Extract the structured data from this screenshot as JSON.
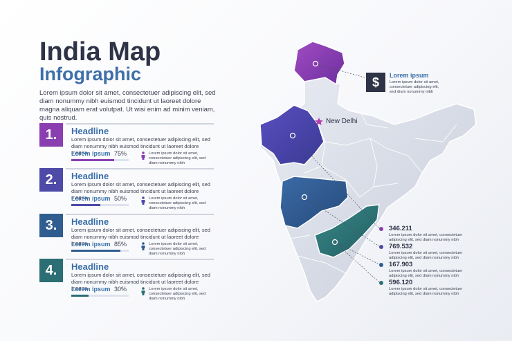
{
  "header": {
    "title": "India Map",
    "subtitle": "Infographic",
    "intro": "Lorem ipsum dolor sit amet, consectetuer adipiscing elit, sed diam nonummy nibh euismod tincidunt ut laoreet dolore magna aliquam erat volutpat. Ut wisi enim ad minim veniam, quis nostrud."
  },
  "items": [
    {
      "number": "1.",
      "headline": "Headline",
      "text": "Lorem ipsum dolor sit amet, consectetuer adipiscing elit, sed diam nonummy nibh euismod tincidunt ut laoreet dolore magna.",
      "label": "Lorem ipsum",
      "percent": "75%",
      "progress": 0.75,
      "small": "Lorem ipsum dolor sit amet, consectetuer adipiscing elit, sed diam nonummy nibh",
      "color": "#8a3fb0"
    },
    {
      "number": "2.",
      "headline": "Headline",
      "text": "Lorem ipsum dolor sit amet, consectetuer adipiscing elit, sed diam nonummy nibh euismod tincidunt ut laoreet dolore magna.",
      "label": "Lorem ipsum",
      "percent": "50%",
      "progress": 0.5,
      "small": "Lorem ipsum dolor sit amet, consectetuer adipiscing elit, sed diam nonummy nibh",
      "color": "#4d4aa8"
    },
    {
      "number": "3.",
      "headline": "Headline",
      "text": "Lorem ipsum dolor sit amet, consectetuer adipiscing elit, sed diam nonummy nibh euismod tincidunt ut laoreet dolore magna.",
      "label": "Lorem ipsum",
      "percent": "85%",
      "progress": 0.85,
      "small": "Lorem ipsum dolor sit amet, consectetuer adipiscing elit, sed diam nonummy nibh",
      "color": "#2f5d8f"
    },
    {
      "number": "4.",
      "headline": "Headline",
      "text": "Lorem ipsum dolor sit amet, consectetuer adipiscing elit, sed diam nonummy nibh euismod tincidunt ut laoreet dolore magna.",
      "label": "Lorem ipsum",
      "percent": "30%",
      "progress": 0.3,
      "small": "Lorem ipsum dolor sit amet, consectetuer adipiscing elit, sed diam nonummy nibh",
      "color": "#2b6e74"
    }
  ],
  "legend": {
    "icon": "dollar-icon",
    "symbol": "$",
    "title": "Lorem ipsum",
    "text": "Lorem ipsum dolor sit amet, consectetuer adipiscing elit, sed diam nonummy nibh"
  },
  "capital": "New Delhi",
  "stats": [
    {
      "value": "346.211",
      "text": "Lorem ipsum dolor sit amet, consectetuer adipiscing elit, sed diam nonummy nibh",
      "color": "#8a3fb0"
    },
    {
      "value": "769.532",
      "text": "Lorem ipsum dolor sit amet, consectetuer adipiscing elit, sed diam nonummy nibh",
      "color": "#4d4aa8"
    },
    {
      "value": "167.903",
      "text": "Lorem ipsum dolor sit amet, consectetuer adipiscing elit, sed diam nonummy nibh",
      "color": "#2f5d8f"
    },
    {
      "value": "596.120",
      "text": "Lorem ipsum dolor sit amet, consectetuer adipiscing elit, sed diam nonummy nibh",
      "color": "#2b6e74"
    }
  ]
}
